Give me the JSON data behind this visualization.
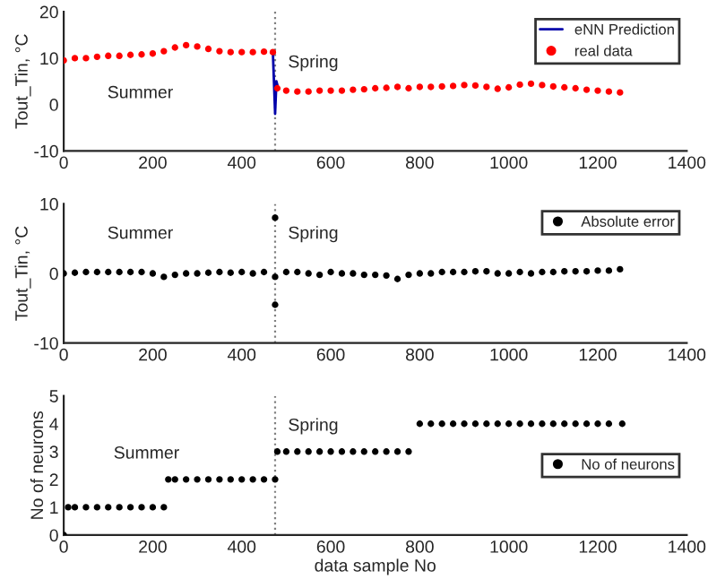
{
  "chart_data": [
    {
      "type": "scatter",
      "ylabel": "Tout_Tin, °C",
      "xlim": [
        0,
        1400
      ],
      "xticks": [
        0,
        200,
        400,
        600,
        800,
        1000,
        1200,
        1400
      ],
      "ylim": [
        -10,
        20
      ],
      "yticks": [
        -10,
        0,
        10,
        20
      ],
      "grid": false,
      "legend": "top right",
      "annotations": [
        "Summer",
        "Spring"
      ],
      "ref_lines": [
        {
          "axis": "x",
          "value": 475,
          "label": null,
          "color": "#808080",
          "line_style": "dotted"
        }
      ],
      "series": [
        {
          "name": "eNN Prediction",
          "type": "line",
          "color": "#0000aa",
          "marker": "none",
          "line_style": "solid",
          "x": [
            470,
            475,
            478,
            482
          ],
          "values": [
            11.3,
            -2,
            5,
            3.5
          ]
        },
        {
          "name": "real data",
          "color": "#ff0000",
          "marker": "circle",
          "x": [
            0,
            25,
            50,
            75,
            100,
            125,
            150,
            175,
            200,
            225,
            250,
            275,
            300,
            325,
            350,
            375,
            400,
            425,
            450,
            470,
            480,
            500,
            525,
            550,
            575,
            600,
            625,
            650,
            675,
            700,
            725,
            750,
            775,
            800,
            825,
            850,
            875,
            900,
            925,
            950,
            975,
            1000,
            1025,
            1050,
            1075,
            1100,
            1125,
            1150,
            1175,
            1200,
            1225,
            1250
          ],
          "values": [
            9.5,
            10,
            10,
            10.3,
            10.5,
            10.5,
            10.7,
            10.8,
            11,
            11.5,
            12.3,
            12.8,
            12.5,
            12,
            11.5,
            11.3,
            11.3,
            11.3,
            11.4,
            11.3,
            3.5,
            3,
            2.8,
            2.8,
            3,
            3,
            3,
            3.2,
            3.3,
            3.5,
            3.6,
            3.8,
            3.5,
            3.8,
            3.8,
            3.9,
            4,
            4.2,
            4.1,
            3.8,
            3.4,
            3.7,
            4.3,
            4.5,
            4.2,
            3.9,
            3.7,
            3.5,
            3.2,
            3,
            2.8,
            2.6
          ]
        }
      ]
    },
    {
      "type": "scatter",
      "ylabel": "Tout_Tin, °C",
      "xlim": [
        0,
        1400
      ],
      "xticks": [
        0,
        200,
        400,
        600,
        800,
        1000,
        1200,
        1400
      ],
      "ylim": [
        -10,
        10
      ],
      "yticks": [
        -10,
        0,
        10
      ],
      "grid": false,
      "legend": "top right",
      "annotations": [
        "Summer",
        "Spring"
      ],
      "ref_lines": [
        {
          "axis": "x",
          "value": 475,
          "label": null,
          "color": "#808080",
          "line_style": "dotted"
        }
      ],
      "series": [
        {
          "name": "Absolute error",
          "color": "#000000",
          "marker": "circle",
          "x": [
            0,
            25,
            50,
            75,
            100,
            125,
            150,
            175,
            200,
            225,
            250,
            275,
            300,
            325,
            350,
            375,
            400,
            425,
            450,
            475,
            475,
            475,
            500,
            525,
            550,
            575,
            600,
            625,
            650,
            675,
            700,
            725,
            750,
            775,
            800,
            825,
            850,
            875,
            900,
            925,
            950,
            975,
            1000,
            1025,
            1050,
            1075,
            1100,
            1125,
            1150,
            1175,
            1200,
            1225,
            1250
          ],
          "values": [
            0,
            0.1,
            0.2,
            0.2,
            0.2,
            0.2,
            0.2,
            0.2,
            0,
            -0.5,
            -0.2,
            0,
            0,
            0.1,
            0.2,
            0.1,
            0.2,
            0,
            0.2,
            -0.5,
            8,
            -4.5,
            0.2,
            0.2,
            0,
            -0.2,
            0.2,
            0,
            0,
            -0.2,
            -0.2,
            -0.3,
            -0.8,
            -0.2,
            0,
            0,
            0.2,
            0.2,
            0.2,
            0.3,
            0.3,
            0,
            0,
            0.2,
            0,
            0.2,
            0.2,
            0.3,
            0.3,
            0.3,
            0.4,
            0.4,
            0.6
          ]
        }
      ]
    },
    {
      "type": "scatter",
      "xlabel": "data sample No",
      "ylabel": "No of neurons",
      "xlim": [
        0,
        1400
      ],
      "xticks": [
        0,
        200,
        400,
        600,
        800,
        1000,
        1200,
        1400
      ],
      "ylim": [
        0,
        5
      ],
      "yticks": [
        0,
        1,
        2,
        3,
        4,
        5
      ],
      "grid": false,
      "legend": "right",
      "annotations": [
        "Summer",
        "Spring"
      ],
      "ref_lines": [
        {
          "axis": "x",
          "value": 475,
          "label": null,
          "color": "#808080",
          "line_style": "dotted"
        }
      ],
      "series": [
        {
          "name": "No of neurons",
          "color": "#000000",
          "marker": "circle",
          "x": [
            0,
            10,
            25,
            50,
            75,
            100,
            125,
            150,
            175,
            200,
            225,
            235,
            250,
            275,
            300,
            325,
            350,
            375,
            400,
            425,
            450,
            475,
            480,
            500,
            525,
            550,
            575,
            600,
            625,
            650,
            675,
            700,
            725,
            750,
            775,
            800,
            825,
            850,
            875,
            900,
            925,
            950,
            975,
            1000,
            1025,
            1050,
            1075,
            1100,
            1125,
            1150,
            1175,
            1200,
            1225,
            1255
          ],
          "values": [
            0,
            1,
            1,
            1,
            1,
            1,
            1,
            1,
            1,
            1,
            1,
            2,
            2,
            2,
            2,
            2,
            2,
            2,
            2,
            2,
            2,
            2,
            3,
            3,
            3,
            3,
            3,
            3,
            3,
            3,
            3,
            3,
            3,
            3,
            3,
            4,
            4,
            4,
            4,
            4,
            4,
            4,
            4,
            4,
            4,
            4,
            4,
            4,
            4,
            4,
            4,
            4,
            4,
            4
          ]
        }
      ]
    }
  ]
}
